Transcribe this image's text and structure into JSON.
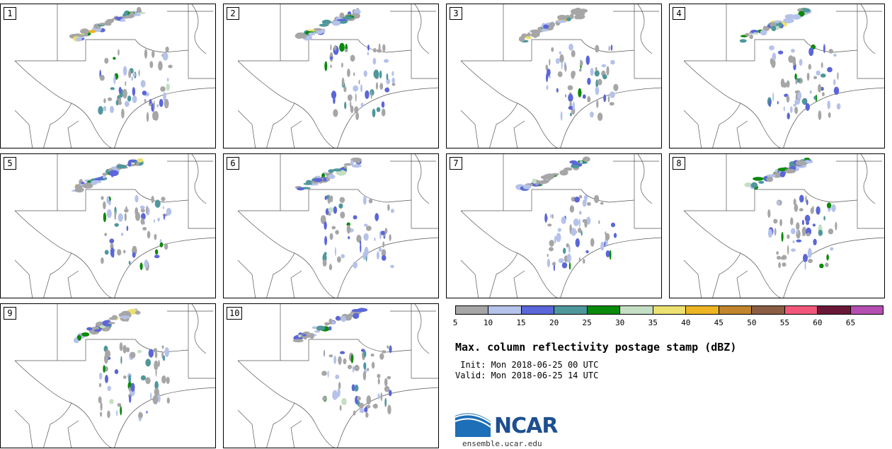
{
  "panels": [
    {
      "label": "1"
    },
    {
      "label": "2"
    },
    {
      "label": "3"
    },
    {
      "label": "4"
    },
    {
      "label": "5"
    },
    {
      "label": "6"
    },
    {
      "label": "7"
    },
    {
      "label": "8"
    },
    {
      "label": "9"
    },
    {
      "label": "10"
    }
  ],
  "colorbar": {
    "colors": [
      "#a6a6a6",
      "#b5c2ea",
      "#5b66d8",
      "#4e979b",
      "#0a8a0a",
      "#c4dfc4",
      "#ece170",
      "#edb424",
      "#c0852e",
      "#8b5e43",
      "#f1577a",
      "#6b1838",
      "#b44fb1"
    ],
    "ticks": [
      "5",
      "10",
      "15",
      "20",
      "25",
      "30",
      "35",
      "40",
      "45",
      "50",
      "55",
      "60",
      "65"
    ]
  },
  "title": "Max. column reflectivity postage stamp (dBZ)",
  "init": " Init: Mon 2018-06-25 00 UTC",
  "valid": "Valid: Mon 2018-06-25 14 UTC",
  "logo_text": "NCAR",
  "url": "ensemble.ucar.edu"
}
